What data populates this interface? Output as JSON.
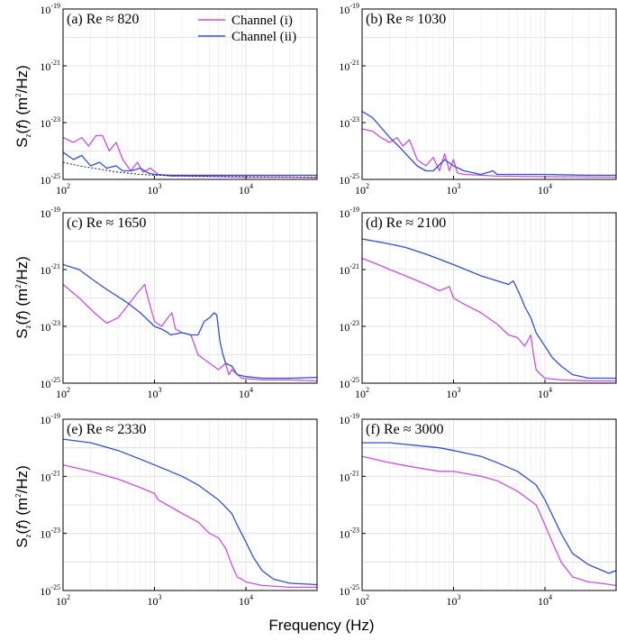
{
  "figure": {
    "xlabel": "Frequency (Hz)",
    "ylabel": "S_z(f) (m²/Hz)",
    "legend": [
      "Channel (i)",
      "Channel (ii)"
    ],
    "colors": {
      "channel_i": "#c850e0",
      "channel_ii": "#3050d8",
      "dotted": "#222222"
    }
  },
  "chart_data": [
    {
      "type": "line",
      "panel": "a",
      "title": "(a) Re ≈ 820",
      "xscale": "log",
      "yscale": "log",
      "xlim": [
        100,
        60000
      ],
      "ylim": [
        1e-25,
        1e-19
      ],
      "xticks": [
        100,
        1000,
        10000
      ],
      "yticks": [
        1e-25,
        1e-23,
        1e-21,
        1e-19
      ],
      "series": [
        {
          "name": "Channel (i)",
          "x": [
            100,
            130,
            160,
            190,
            230,
            270,
            320,
            380,
            450,
            550,
            650,
            750,
            900,
            1100,
            1500,
            2000,
            5000,
            10000,
            30000,
            60000
          ],
          "y": [
            3e-24,
            2e-24,
            3e-24,
            1.5e-24,
            3.5e-24,
            3.5e-24,
            1e-24,
            2e-24,
            5e-25,
            2e-25,
            4e-25,
            1.8e-25,
            2.5e-25,
            1.5e-25,
            1.3e-25,
            1.3e-25,
            1.25e-25,
            1.2e-25,
            1.2e-25,
            1.15e-25
          ]
        },
        {
          "name": "Channel (ii)",
          "x": [
            100,
            130,
            160,
            200,
            250,
            300,
            380,
            450,
            550,
            700,
            850,
            1000,
            1500,
            3000,
            10000,
            30000,
            60000
          ],
          "y": [
            9e-25,
            5e-25,
            7e-25,
            3e-25,
            4e-25,
            2.5e-25,
            3e-25,
            2e-25,
            2e-25,
            2.5e-25,
            1.7e-25,
            1.5e-25,
            1.4e-25,
            1.4e-25,
            1.4e-25,
            1.4e-25,
            1.4e-25
          ]
        },
        {
          "name": "noise floor",
          "style": "dotted",
          "x": [
            100,
            150,
            250,
            400,
            700,
            1000,
            3000,
            10000,
            60000
          ],
          "y": [
            4e-25,
            3e-25,
            2.3e-25,
            1.8e-25,
            1.5e-25,
            1.4e-25,
            1.3e-25,
            1.25e-25,
            1.2e-25
          ]
        }
      ]
    },
    {
      "type": "line",
      "panel": "b",
      "title": "(b) Re ≈ 1030",
      "xscale": "log",
      "yscale": "log",
      "xlim": [
        100,
        60000
      ],
      "ylim": [
        1e-25,
        1e-19
      ],
      "xticks": [
        100,
        1000,
        10000
      ],
      "yticks": [
        1e-25,
        1e-23,
        1e-21,
        1e-19
      ],
      "series": [
        {
          "name": "Channel (i)",
          "x": [
            100,
            130,
            160,
            200,
            240,
            280,
            330,
            400,
            500,
            600,
            700,
            800,
            900,
            1000,
            1100,
            1300,
            2000,
            3000,
            10000,
            60000
          ],
          "y": [
            6e-24,
            5e-24,
            3e-24,
            2e-24,
            3e-24,
            1.5e-24,
            2.5e-24,
            5e-25,
            3e-25,
            6e-25,
            2e-25,
            8e-25,
            2e-25,
            5e-25,
            1.7e-25,
            1.5e-25,
            1.4e-25,
            1.3e-25,
            1.25e-25,
            1.2e-25
          ]
        },
        {
          "name": "Channel (ii)",
          "x": [
            100,
            130,
            160,
            200,
            250,
            300,
            400,
            500,
            600,
            800,
            1000,
            1300,
            2000,
            2700,
            3000,
            5000,
            10000,
            30000,
            60000
          ],
          "y": [
            2.5e-23,
            1.5e-23,
            7e-24,
            3e-24,
            1.5e-24,
            8e-25,
            3e-25,
            2e-25,
            2e-25,
            5e-25,
            3e-25,
            2e-25,
            1.5e-25,
            2e-25,
            1.5e-25,
            1.5e-25,
            1.5e-25,
            1.4e-25,
            1.4e-25
          ]
        }
      ]
    },
    {
      "type": "line",
      "panel": "c",
      "title": "(c) Re ≈ 1650",
      "xscale": "log",
      "yscale": "log",
      "xlim": [
        100,
        60000
      ],
      "ylim": [
        1e-25,
        1e-19
      ],
      "xticks": [
        100,
        1000,
        10000
      ],
      "yticks": [
        1e-25,
        1e-23,
        1e-21,
        1e-19
      ],
      "series": [
        {
          "name": "Channel (i)",
          "x": [
            100,
            150,
            220,
            300,
            400,
            500,
            650,
            780,
            850,
            1000,
            1200,
            1400,
            1550,
            1700,
            2000,
            2500,
            3000,
            4000,
            5000,
            6000,
            6500,
            7000,
            9000,
            15000,
            30000,
            60000
          ],
          "y": [
            3e-22,
            1e-22,
            3e-23,
            1.3e-23,
            2e-23,
            5e-23,
            1.5e-22,
            3e-22,
            1e-22,
            1.5e-23,
            1e-23,
            2e-23,
            3e-23,
            8e-24,
            6e-24,
            5e-24,
            1e-24,
            5e-25,
            3e-25,
            5e-25,
            2e-25,
            3e-25,
            1.5e-25,
            1.3e-25,
            1.3e-25,
            1.2e-25
          ]
        },
        {
          "name": "Channel (ii)",
          "x": [
            100,
            150,
            200,
            300,
            500,
            700,
            1000,
            1200,
            1400,
            1500,
            2000,
            2500,
            3000,
            3500,
            4000,
            4500,
            4800,
            5200,
            5600,
            6000,
            7000,
            8000,
            10000,
            15000,
            30000,
            60000
          ],
          "y": [
            1.5e-21,
            1e-21,
            5e-22,
            2e-22,
            7e-23,
            3e-23,
            1e-23,
            8e-24,
            6e-24,
            5e-24,
            6e-24,
            5e-24,
            5e-24,
            1.5e-23,
            2e-23,
            3e-23,
            2.5e-23,
            3e-24,
            1e-24,
            5e-25,
            4e-25,
            2e-25,
            1.7e-25,
            1.5e-25,
            1.5e-25,
            1.6e-25
          ]
        }
      ]
    },
    {
      "type": "line",
      "panel": "d",
      "title": "(d) Re ≈ 2100",
      "xscale": "log",
      "yscale": "log",
      "xlim": [
        100,
        60000
      ],
      "ylim": [
        1e-25,
        1e-19
      ],
      "xticks": [
        100,
        1000,
        10000
      ],
      "yticks": [
        1e-25,
        1e-23,
        1e-21,
        1e-19
      ],
      "series": [
        {
          "name": "Channel (i)",
          "x": [
            100,
            150,
            200,
            300,
            500,
            700,
            900,
            1000,
            1200,
            2000,
            3000,
            4000,
            5000,
            6000,
            7000,
            7500,
            8000,
            9000,
            10000,
            15000,
            30000,
            60000
          ],
          "y": [
            2.5e-21,
            1.5e-21,
            1e-21,
            6e-22,
            3e-22,
            1.8e-22,
            2.5e-22,
            1e-22,
            7e-23,
            3e-23,
            1.2e-23,
            5e-24,
            4e-24,
            2e-24,
            5e-24,
            1e-24,
            3e-25,
            2e-25,
            1.5e-25,
            1.3e-25,
            1.2e-25,
            1.2e-25
          ]
        },
        {
          "name": "Channel (ii)",
          "x": [
            100,
            200,
            300,
            500,
            1000,
            2000,
            3000,
            4000,
            4500,
            5000,
            5500,
            6000,
            7000,
            8000,
            10000,
            12000,
            15000,
            20000,
            30000,
            60000
          ],
          "y": [
            1.2e-20,
            8e-21,
            6e-21,
            3.5e-21,
            1.5e-21,
            6e-22,
            4e-22,
            3e-22,
            4e-22,
            2e-22,
            1e-22,
            5e-23,
            2e-23,
            6e-24,
            2e-24,
            8e-25,
            4e-25,
            2e-25,
            1.5e-25,
            1.5e-25
          ]
        }
      ]
    },
    {
      "type": "line",
      "panel": "e",
      "title": "(e) Re ≈ 2330",
      "xscale": "log",
      "yscale": "log",
      "xlim": [
        100,
        60000
      ],
      "ylim": [
        1e-25,
        1e-19
      ],
      "xticks": [
        100,
        1000,
        10000
      ],
      "yticks": [
        1e-25,
        1e-23,
        1e-21,
        1e-19
      ],
      "series": [
        {
          "name": "Channel (i)",
          "x": [
            100,
            200,
            400,
            700,
            1000,
            1100,
            2000,
            3000,
            4000,
            5000,
            6000,
            7000,
            8000,
            9000,
            10000,
            15000,
            30000,
            60000
          ],
          "y": [
            2.5e-21,
            1.5e-21,
            8e-22,
            4e-22,
            2.5e-22,
            1.5e-22,
            5e-23,
            2.5e-23,
            1e-23,
            7e-24,
            3e-24,
            8e-25,
            3e-25,
            2.5e-25,
            2e-25,
            1.5e-25,
            1.3e-25,
            1.3e-25
          ]
        },
        {
          "name": "Channel (ii)",
          "x": [
            100,
            200,
            400,
            700,
            1000,
            2000,
            3000,
            5000,
            7000,
            8000,
            10000,
            12000,
            15000,
            20000,
            30000,
            60000
          ],
          "y": [
            2e-20,
            1.5e-20,
            8e-21,
            4e-21,
            2.5e-21,
            1e-21,
            5e-22,
            1.5e-22,
            5e-23,
            2e-23,
            5e-24,
            1.5e-24,
            5e-25,
            2.5e-25,
            1.8e-25,
            1.6e-25
          ]
        }
      ]
    },
    {
      "type": "line",
      "panel": "f",
      "title": "(f) Re ≈ 3000",
      "xscale": "log",
      "yscale": "log",
      "xlim": [
        100,
        60000
      ],
      "ylim": [
        1e-25,
        1e-19
      ],
      "xticks": [
        100,
        1000,
        10000
      ],
      "yticks": [
        1e-25,
        1e-23,
        1e-21,
        1e-19
      ],
      "series": [
        {
          "name": "Channel (i)",
          "x": [
            100,
            200,
            400,
            700,
            1000,
            2000,
            3000,
            5000,
            8000,
            10000,
            12000,
            15000,
            20000,
            30000,
            40000,
            60000
          ],
          "y": [
            5e-21,
            3e-21,
            2e-21,
            1.5e-21,
            1.5e-21,
            1e-21,
            7e-22,
            3e-22,
            1e-22,
            2e-23,
            5e-24,
            1e-24,
            3e-25,
            2e-25,
            1.8e-25,
            1.5e-25
          ]
        },
        {
          "name": "Channel (ii)",
          "x": [
            100,
            200,
            400,
            700,
            1000,
            2000,
            3000,
            5000,
            8000,
            10000,
            15000,
            20000,
            30000,
            50000,
            60000
          ],
          "y": [
            1.5e-20,
            1.5e-20,
            1.2e-20,
            1e-20,
            8e-21,
            5e-21,
            3e-21,
            1.5e-21,
            5e-22,
            1.5e-22,
            1e-23,
            2e-24,
            8e-25,
            4e-25,
            5e-25
          ]
        }
      ]
    }
  ]
}
